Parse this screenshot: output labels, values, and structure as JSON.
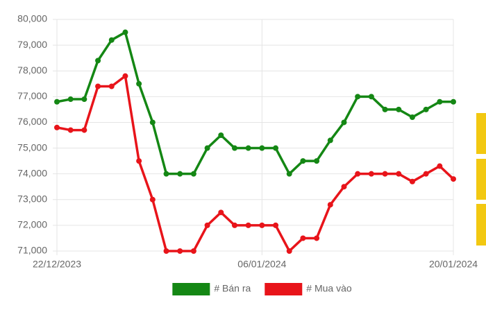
{
  "chart_data": {
    "type": "line",
    "categories": [
      "22/12/2023",
      null,
      null,
      null,
      null,
      null,
      null,
      null,
      null,
      null,
      null,
      null,
      null,
      null,
      null,
      "06/01/2024",
      null,
      null,
      null,
      null,
      null,
      null,
      null,
      null,
      null,
      null,
      null,
      null,
      null,
      "20/01/2024"
    ],
    "series": [
      {
        "name": "# Bán ra",
        "color": "#148714",
        "values": [
          76800,
          76900,
          76900,
          78400,
          79200,
          79500,
          77500,
          76000,
          74000,
          74000,
          74000,
          75000,
          75500,
          75000,
          75000,
          75000,
          75000,
          74000,
          74500,
          74500,
          75300,
          76000,
          77000,
          77000,
          76500,
          76500,
          76200,
          76500,
          76800,
          76800
        ]
      },
      {
        "name": "# Mua vào",
        "color": "#e8141a",
        "values": [
          75800,
          75700,
          75700,
          77400,
          77400,
          77800,
          74500,
          73000,
          71000,
          71000,
          71000,
          72000,
          72500,
          72000,
          72000,
          72000,
          72000,
          71000,
          71500,
          71500,
          72800,
          73500,
          74000,
          74000,
          74000,
          74000,
          73700,
          74000,
          74300,
          73800
        ]
      }
    ],
    "ylim": [
      71000,
      80000
    ],
    "yticks": [
      {
        "value": 71000,
        "label": "71,000"
      },
      {
        "value": 72000,
        "label": "72,000"
      },
      {
        "value": 73000,
        "label": "73,000"
      },
      {
        "value": 74000,
        "label": "74,000"
      },
      {
        "value": 75000,
        "label": "75,000"
      },
      {
        "value": 76000,
        "label": "76,000"
      },
      {
        "value": 77000,
        "label": "77,000"
      },
      {
        "value": 78000,
        "label": "78,000"
      },
      {
        "value": 79000,
        "label": "79,000"
      },
      {
        "value": 80000,
        "label": "80,000"
      }
    ],
    "grid": true,
    "legend": "bottom"
  }
}
